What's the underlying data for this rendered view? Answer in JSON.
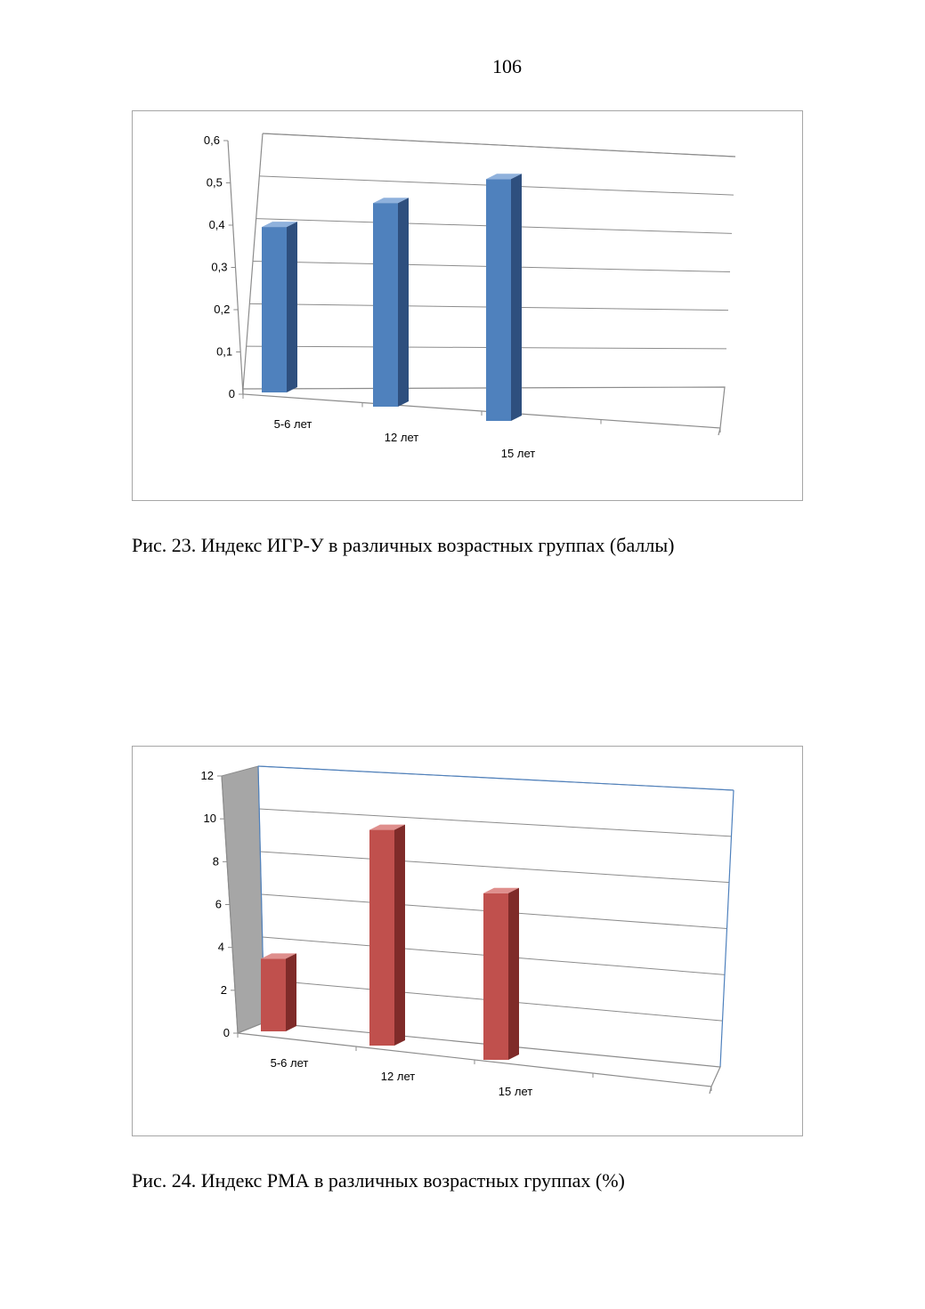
{
  "page_number": "106",
  "captions": [
    "Рис. 23. Индекс ИГР-У в различных возрастных группах (баллы)",
    "Рис. 24. Индекс РМА в различных возрастных группах (%)"
  ],
  "chart_data": [
    {
      "type": "bar",
      "categories": [
        "5-6 лет",
        "12 лет",
        "15 лет"
      ],
      "values": [
        0.39,
        0.48,
        0.57
      ],
      "y_ticks": [
        "0",
        "0,1",
        "0,2",
        "0,3",
        "0,4",
        "0,5",
        "0,6"
      ],
      "ylim": [
        0,
        0.6
      ],
      "grid": true,
      "bar_colors": {
        "front": "#4f81bd",
        "side": "#2e4f7e",
        "top": "#8fb1dc"
      }
    },
    {
      "type": "bar",
      "categories": [
        "5-6 лет",
        "12 лет",
        "15 лет"
      ],
      "values": [
        3.4,
        10.1,
        7.8
      ],
      "y_ticks": [
        "0",
        "2",
        "4",
        "6",
        "8",
        "10",
        "12"
      ],
      "ylim": [
        0,
        12
      ],
      "grid": true,
      "bar_colors": {
        "front": "#c0504d",
        "side": "#7f2b29",
        "top": "#df8f8d"
      },
      "wall_color": "#a6a6a6",
      "frame_color": "#4f81bd"
    }
  ]
}
